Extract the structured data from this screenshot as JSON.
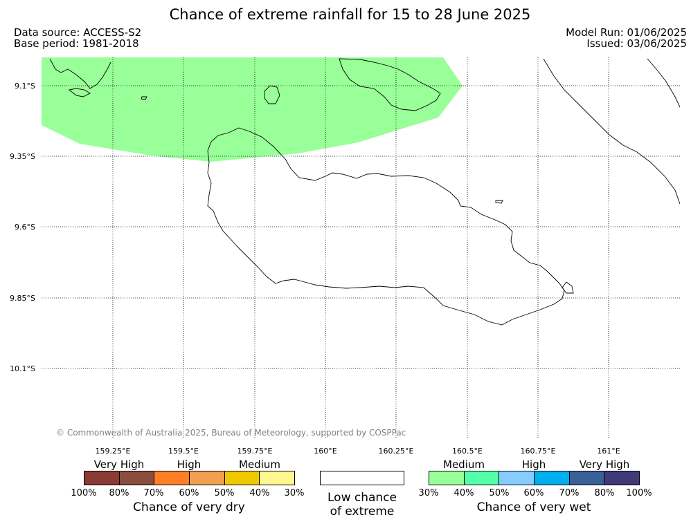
{
  "title": "Chance of extreme rainfall for 15 to 28 June 2025",
  "data_source": "Data source: ACCESS-S2",
  "base_period": "Base period: 1981-2018",
  "model_run": "Model Run: 01/06/2025",
  "issued": "Issued: 03/06/2025",
  "copyright": "© Commonwealth of Australia 2025, Bureau of Meteorology, supported by COSPPac",
  "map": {
    "lat_labels": [
      "9.1°S",
      "9.35°S",
      "9.6°S",
      "9.85°S",
      "10.1°S"
    ],
    "lon_labels": [
      "159.25°E",
      "159.5°E",
      "159.75°E",
      "160°E",
      "160.25°E",
      "160.5°E",
      "160.75°E",
      "161°E"
    ],
    "regions": [
      {
        "category": "Medium chance of very wet",
        "probability": "30%-40%",
        "color": "#99ff99",
        "area": "northern waters, north of Guadalcanal"
      }
    ]
  },
  "legend": {
    "dry": {
      "categories": [
        "Very High",
        "High",
        "Medium"
      ],
      "colors": [
        "#8b3a34",
        "#8b4e3d",
        "#ff7f27",
        "#f0a050",
        "#f0c800",
        "#fff68f"
      ],
      "ticks": [
        "100%",
        "80%",
        "70%",
        "60%",
        "50%",
        "40%",
        "30%"
      ],
      "caption": "Chance of very dry"
    },
    "low": {
      "line1": "Low chance",
      "line2": "of extreme"
    },
    "wet": {
      "categories": [
        "Medium",
        "High",
        "Very High"
      ],
      "colors": [
        "#99ff99",
        "#55ffaa",
        "#88ccff",
        "#00b0ee",
        "#3a6098",
        "#403a78"
      ],
      "ticks": [
        "30%",
        "40%",
        "50%",
        "60%",
        "70%",
        "80%",
        "100%"
      ],
      "caption": "Chance of very wet"
    }
  }
}
